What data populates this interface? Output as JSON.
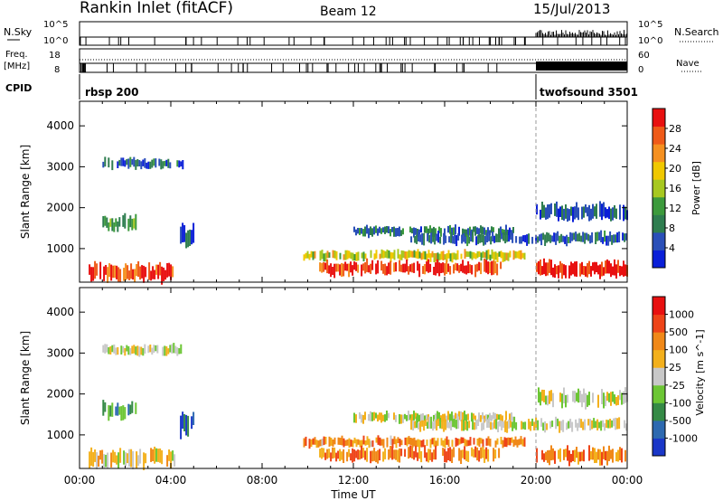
{
  "header": {
    "radar": "Rankin Inlet (fitACF)",
    "beam": "Beam 12",
    "date": "15/Jul/2013"
  },
  "strips": {
    "nsky_label": "N.Sky",
    "nsearch_label": "N.Search",
    "nsky_ticks": [
      "10^5",
      "10^0"
    ],
    "nsearch_ticks": [
      "10^5",
      "10^0"
    ],
    "freq_label_1": "Freq.",
    "freq_label_2": "[MHz]",
    "freq_ticks": [
      "18",
      "8"
    ],
    "nave_label": "Nave",
    "nave_ticks": [
      "60",
      "0"
    ],
    "cpid_label": "CPID",
    "cpid_segments": [
      {
        "name": "rbsp 200",
        "start_hour": 0
      },
      {
        "name": "twofsound 3501",
        "start_hour": 20
      }
    ]
  },
  "chart_data": [
    {
      "type": "heatmap",
      "title": "",
      "xlabel": "Time UT",
      "ylabel": "Slant Range [km]",
      "x_ticks": [
        "00:00",
        "04:00",
        "08:00",
        "12:00",
        "16:00",
        "20:00",
        "00:00"
      ],
      "xlim_hours": [
        0,
        24
      ],
      "y_ticks": [
        1000,
        2000,
        3000,
        4000
      ],
      "ylim": [
        180,
        4600
      ],
      "colorbar_label": "Power [dB]",
      "colorbar_ticks": [
        "4",
        "8",
        "12",
        "16",
        "20",
        "24",
        "28"
      ],
      "colorbar_range": [
        0,
        32
      ],
      "colorbar_colors": [
        "#0a1fd8",
        "#2a4fb8",
        "#2e7d4f",
        "#3c9a3c",
        "#a7c820",
        "#f0c800",
        "#f59020",
        "#ef5a18",
        "#e81010"
      ],
      "regions": [
        {
          "t": [
            0.4,
            4.2
          ],
          "r": [
            200,
            650
          ],
          "level": 0.85
        },
        {
          "t": [
            1.0,
            4.5
          ],
          "r": [
            2950,
            3200
          ],
          "level": 0.2
        },
        {
          "t": [
            1.0,
            2.5
          ],
          "r": [
            1400,
            1800
          ],
          "level": 0.35
        },
        {
          "t": [
            4.4,
            5.0
          ],
          "r": [
            1000,
            1600
          ],
          "level": 0.15
        },
        {
          "t": [
            9.8,
            19.5
          ],
          "r": [
            700,
            950
          ],
          "level": 0.55
        },
        {
          "t": [
            10.5,
            18.5
          ],
          "r": [
            350,
            700
          ],
          "level": 0.9
        },
        {
          "t": [
            12.0,
            19.0
          ],
          "r": [
            1300,
            1550
          ],
          "level": 0.25
        },
        {
          "t": [
            14.5,
            24.0
          ],
          "r": [
            1100,
            1400
          ],
          "level": 0.2
        },
        {
          "t": [
            20.0,
            24.0
          ],
          "r": [
            300,
            700
          ],
          "level": 0.95
        },
        {
          "t": [
            20.0,
            24.0
          ],
          "r": [
            1700,
            2100
          ],
          "level": 0.15
        }
      ]
    },
    {
      "type": "heatmap",
      "title": "",
      "xlabel": "Time UT",
      "ylabel": "Slant Range [km]",
      "x_ticks": [
        "00:00",
        "04:00",
        "08:00",
        "12:00",
        "16:00",
        "20:00",
        "00:00"
      ],
      "xlim_hours": [
        0,
        24
      ],
      "y_ticks": [
        1000,
        2000,
        3000,
        4000
      ],
      "ylim": [
        180,
        4600
      ],
      "colorbar_label": "Velocity [m s^-1]",
      "colorbar_ticks": [
        "1000",
        "500",
        "100",
        "25",
        "-25",
        "-100",
        "-500",
        "-1000"
      ],
      "colorbar_range": [
        -1200,
        1200
      ],
      "colorbar_colors": [
        "#1a37c8",
        "#2d69b0",
        "#358a46",
        "#6cc634",
        "#c8c8c8",
        "#f3b01c",
        "#f08818",
        "#ee4418",
        "#e81010"
      ],
      "regions": [
        {
          "t": [
            0.4,
            4.2
          ],
          "r": [
            200,
            650
          ],
          "level": 0.55
        },
        {
          "t": [
            1.0,
            4.5
          ],
          "r": [
            2950,
            3200
          ],
          "level": 0.5
        },
        {
          "t": [
            1.0,
            2.5
          ],
          "r": [
            1400,
            1800
          ],
          "level": 0.3
        },
        {
          "t": [
            4.4,
            5.0
          ],
          "r": [
            1000,
            1600
          ],
          "level": 0.1
        },
        {
          "t": [
            9.8,
            19.5
          ],
          "r": [
            700,
            950
          ],
          "level": 0.7
        },
        {
          "t": [
            10.5,
            18.5
          ],
          "r": [
            350,
            700
          ],
          "level": 0.72
        },
        {
          "t": [
            12.0,
            19.0
          ],
          "r": [
            1300,
            1550
          ],
          "level": 0.5
        },
        {
          "t": [
            14.5,
            24.0
          ],
          "r": [
            1100,
            1400
          ],
          "level": 0.5
        },
        {
          "t": [
            20.0,
            24.0
          ],
          "r": [
            300,
            700
          ],
          "level": 0.72
        },
        {
          "t": [
            20.0,
            24.0
          ],
          "r": [
            1700,
            2100
          ],
          "level": 0.5
        }
      ]
    }
  ]
}
